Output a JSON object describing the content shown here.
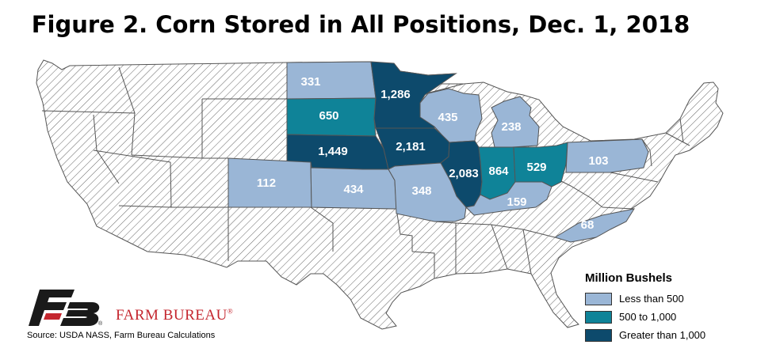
{
  "title": "Figure 2. Corn Stored in All Positions, Dec. 1, 2018",
  "legend": {
    "title": "Million Bushels",
    "items": [
      {
        "label": "Less than 500",
        "color": "#9ab6d6"
      },
      {
        "label": "500 to 1,000",
        "color": "#0f8398"
      },
      {
        "label": "Greater than 1,000",
        "color": "#0d4a6c"
      }
    ]
  },
  "states": [
    {
      "id": "nd",
      "value": "331",
      "tier": 0
    },
    {
      "id": "sd",
      "value": "650",
      "tier": 1
    },
    {
      "id": "ne",
      "value": "1,449",
      "tier": 2
    },
    {
      "id": "mn",
      "value": "1,286",
      "tier": 2
    },
    {
      "id": "ia",
      "value": "2,181",
      "tier": 2
    },
    {
      "id": "wi",
      "value": "435",
      "tier": 0
    },
    {
      "id": "mi",
      "value": "238",
      "tier": 0
    },
    {
      "id": "il",
      "value": "2,083",
      "tier": 2
    },
    {
      "id": "in",
      "value": "864",
      "tier": 1
    },
    {
      "id": "oh",
      "value": "529",
      "tier": 1
    },
    {
      "id": "pa",
      "value": "103",
      "tier": 0
    },
    {
      "id": "co",
      "value": "112",
      "tier": 0
    },
    {
      "id": "ks",
      "value": "434",
      "tier": 0
    },
    {
      "id": "mo",
      "value": "348",
      "tier": 0
    },
    {
      "id": "ky",
      "value": "159",
      "tier": 0
    },
    {
      "id": "nc",
      "value": "68",
      "tier": 0
    }
  ],
  "brand": {
    "name": "FARM BUREAU",
    "mark": "®"
  },
  "source": "Source: USDA NASS, Farm Bureau Calculations"
}
